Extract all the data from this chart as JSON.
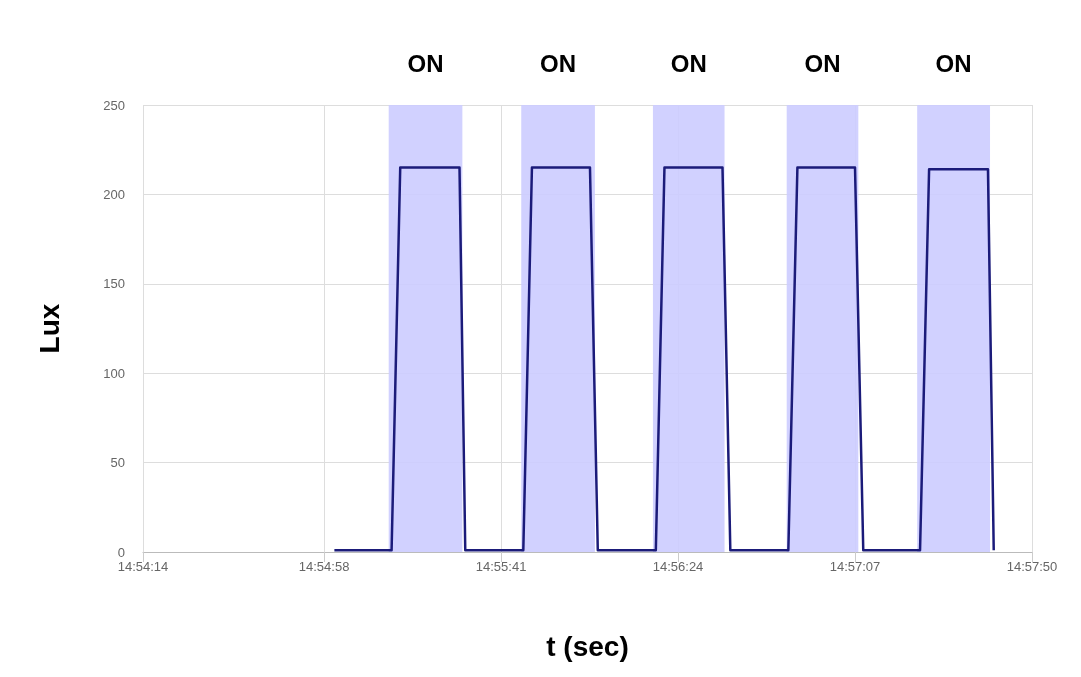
{
  "chart_data": {
    "type": "line",
    "xlabel": "t (sec)",
    "ylabel": "Lux",
    "x": [
      14.916806,
      14.920667,
      14.92125,
      14.92525,
      14.925639,
      14.929556,
      14.930139,
      14.934056,
      14.934583,
      14.9385,
      14.939083,
      14.943,
      14.943528,
      14.947444,
      14.948056,
      14.951944,
      14.9525,
      14.956333,
      14.956944,
      14.960917,
      14.961306
    ],
    "series": [
      {
        "color": "#1b1b7a",
        "values": [
          1,
          1,
          215,
          215,
          1,
          1,
          215,
          215,
          1,
          1,
          215,
          215,
          1,
          1,
          215,
          215,
          1,
          1,
          214,
          214,
          1
        ]
      }
    ],
    "xlim": [
      14.903889,
      14.963889
    ],
    "xticks": [
      {
        "value": 14.903889,
        "label": "14:54:14"
      },
      {
        "value": 14.916111,
        "label": "14:54:58"
      },
      {
        "value": 14.928056,
        "label": "14:55:41"
      },
      {
        "value": 14.94,
        "label": "14:56:24"
      },
      {
        "value": 14.951944,
        "label": "14:57:07"
      },
      {
        "value": 14.963889,
        "label": "14:57:50"
      }
    ],
    "ylim": [
      0,
      250
    ],
    "yticks": [
      0,
      50,
      100,
      150,
      200,
      250
    ],
    "bands": [
      {
        "axis": "x",
        "from": 14.920472,
        "to": 14.925444,
        "label": "ON",
        "color": "#ccccff"
      },
      {
        "axis": "x",
        "from": 14.929417,
        "to": 14.934389,
        "label": "ON",
        "color": "#ccccff"
      },
      {
        "axis": "x",
        "from": 14.938306,
        "to": 14.943139,
        "label": "ON",
        "color": "#ccccff"
      },
      {
        "axis": "x",
        "from": 14.947333,
        "to": 14.952167,
        "label": "ON",
        "color": "#ccccff"
      },
      {
        "axis": "x",
        "from": 14.956139,
        "to": 14.961056,
        "label": "ON",
        "color": "#ccccff"
      }
    ],
    "grid": true,
    "marker": "none",
    "line_style": "solid"
  }
}
